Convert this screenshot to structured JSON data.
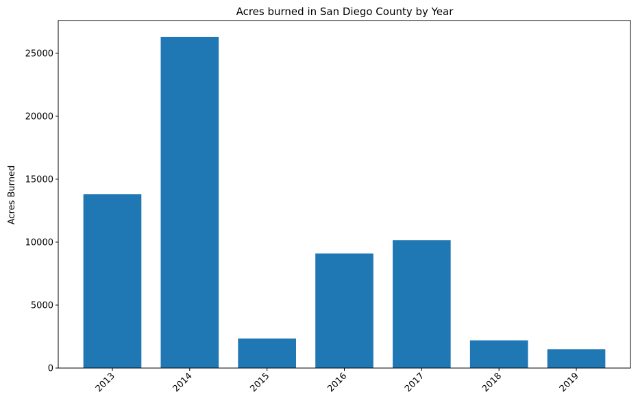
{
  "chart_data": {
    "type": "bar",
    "title": "Acres burned in San Diego County by Year",
    "xlabel": "",
    "ylabel": "Acres Burned",
    "categories": [
      "2013",
      "2014",
      "2015",
      "2016",
      "2017",
      "2018",
      "2019"
    ],
    "values": [
      13800,
      26300,
      2350,
      9100,
      10150,
      2200,
      1500
    ],
    "ylim": [
      0,
      27600
    ],
    "yticks": [
      0,
      5000,
      10000,
      15000,
      20000,
      25000
    ],
    "grid": false,
    "legend": "none",
    "bar_color": "#1f77b4"
  }
}
